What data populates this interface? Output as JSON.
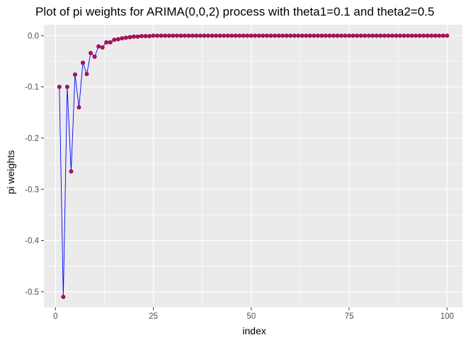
{
  "chart_data": {
    "type": "line",
    "title": "Plot of pi weights for ARIMA(0,0,2) process with theta1=0.1 and theta2=0.5",
    "xlabel": "index",
    "ylabel": "pi weights",
    "xlim": [
      -2.95,
      103.95
    ],
    "ylim": [
      -0.5306,
      0.0212
    ],
    "x_ticks": [
      0,
      25,
      50,
      75,
      100
    ],
    "x_tick_labels": [
      "0",
      "25",
      "50",
      "75",
      "100"
    ],
    "y_ticks": [
      -0.5,
      -0.4,
      -0.3,
      -0.2,
      -0.1,
      0.0
    ],
    "y_tick_labels": [
      "-0.5",
      "-0.4",
      "-0.3",
      "-0.2",
      "-0.1",
      "0.0"
    ],
    "grid": true,
    "legend": "none",
    "colors": {
      "panel": "#ebebeb",
      "grid": "#ffffff",
      "line": "#0000ff",
      "point_fill": "#b2182b",
      "point_stroke": "#8b008b"
    },
    "series": [
      {
        "x": [
          1,
          2,
          3,
          4,
          5,
          6,
          7,
          8,
          9,
          10,
          11,
          12,
          13,
          14,
          15,
          16,
          17,
          18,
          19,
          20,
          21,
          22,
          23,
          24,
          25,
          26,
          27,
          28,
          29,
          30,
          31,
          32,
          33,
          34,
          35,
          36,
          37,
          38,
          39,
          40,
          41,
          42,
          43,
          44,
          45,
          46,
          47,
          48,
          49,
          50,
          51,
          52,
          53,
          54,
          55,
          56,
          57,
          58,
          59,
          60,
          61,
          62,
          62,
          64,
          65,
          66,
          67,
          68,
          69,
          70,
          71,
          72,
          73,
          74,
          75,
          76,
          77,
          78,
          79,
          80,
          81,
          82,
          83,
          84,
          85,
          86,
          87,
          88,
          89,
          90,
          91,
          92,
          93,
          94,
          95,
          96,
          97,
          98,
          99,
          100
        ],
        "values": [
          -0.1,
          -0.51,
          -0.1,
          -0.265,
          -0.076,
          -0.14,
          -0.053,
          -0.075,
          -0.034,
          -0.041,
          -0.021,
          -0.023,
          -0.013,
          -0.013,
          -0.008,
          -0.007,
          -0.005,
          -0.004,
          -0.003,
          -0.002,
          -0.002,
          -0.001,
          -0.001,
          -0.001,
          0,
          0,
          0,
          0,
          0,
          0,
          0,
          0,
          0,
          0,
          0,
          0,
          0,
          0,
          0,
          0,
          0,
          0,
          0,
          0,
          0,
          0,
          0,
          0,
          0,
          0,
          0,
          0,
          0,
          0,
          0,
          0,
          0,
          0,
          0,
          0,
          0,
          0,
          0,
          0,
          0,
          0,
          0,
          0,
          0,
          0,
          0,
          0,
          0,
          0,
          0,
          0,
          0,
          0,
          0,
          0,
          0,
          0,
          0,
          0,
          0,
          0,
          0,
          0,
          0,
          0,
          0,
          0,
          0,
          0,
          0,
          0,
          0,
          0,
          0,
          0
        ]
      }
    ]
  }
}
